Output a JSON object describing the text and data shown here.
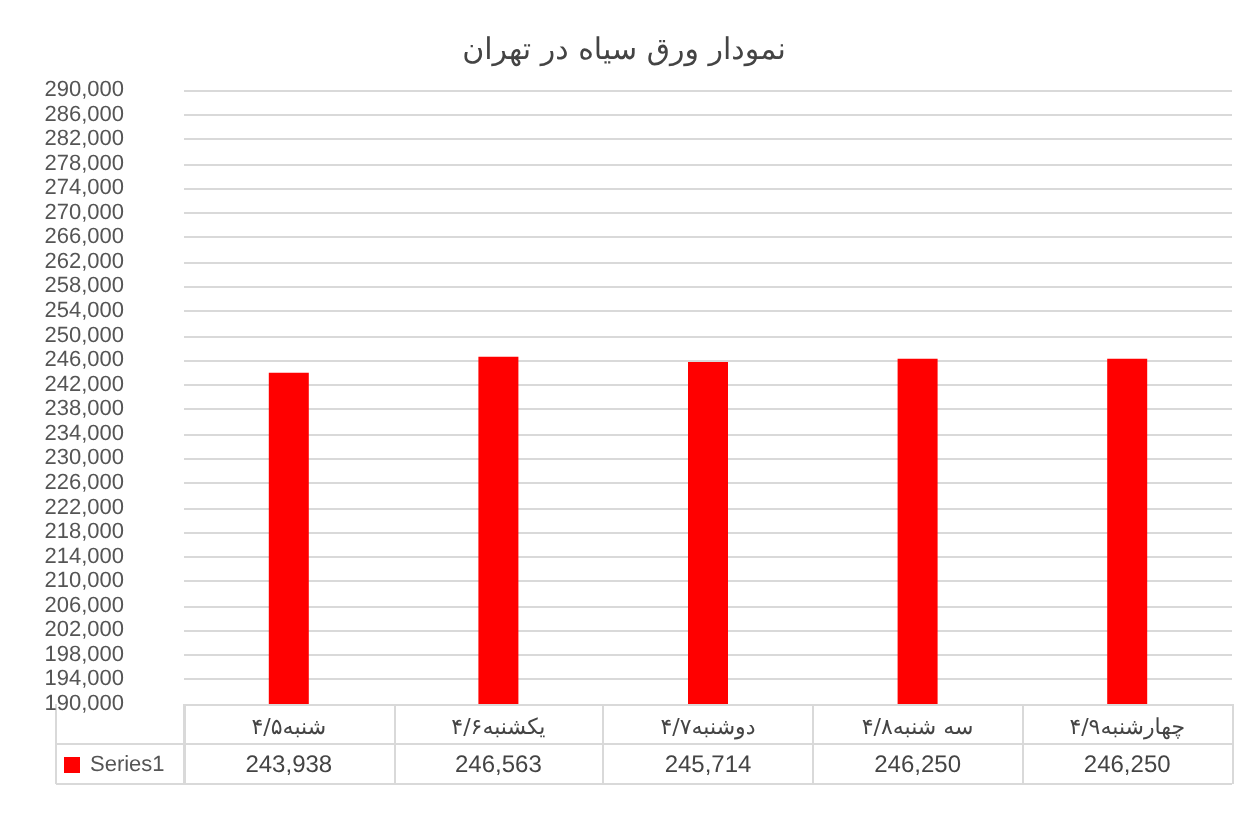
{
  "chart_data": {
    "type": "bar",
    "title": "نمودار ورق سیاه در تهران",
    "categories": [
      "شنبه۴/۵",
      "یکشنبه۴/۶",
      "دوشنبه۴/۷",
      "سه شنبه۴/۸",
      "چهارشنبه۴/۹"
    ],
    "series": [
      {
        "name": "Series1",
        "color": "#ff0000",
        "values": [
          243938,
          246563,
          245714,
          246250,
          246250
        ],
        "value_labels": [
          "243,938",
          "246,563",
          "245,714",
          "246,250",
          "246,250"
        ]
      }
    ],
    "ylim": [
      190000,
      290000
    ],
    "yticks": [
      {
        "value": 190000,
        "label": "190,000"
      },
      {
        "value": 194000,
        "label": "194,000"
      },
      {
        "value": 198000,
        "label": "198,000"
      },
      {
        "value": 202000,
        "label": "202,000"
      },
      {
        "value": 206000,
        "label": "206,000"
      },
      {
        "value": 210000,
        "label": "210,000"
      },
      {
        "value": 214000,
        "label": "214,000"
      },
      {
        "value": 218000,
        "label": "218,000"
      },
      {
        "value": 222000,
        "label": "222,000"
      },
      {
        "value": 226000,
        "label": "226,000"
      },
      {
        "value": 230000,
        "label": "230,000"
      },
      {
        "value": 234000,
        "label": "234,000"
      },
      {
        "value": 238000,
        "label": "238,000"
      },
      {
        "value": 242000,
        "label": "242,000"
      },
      {
        "value": 246000,
        "label": "246,000"
      },
      {
        "value": 250000,
        "label": "250,000"
      },
      {
        "value": 254000,
        "label": "254,000"
      },
      {
        "value": 258000,
        "label": "258,000"
      },
      {
        "value": 262000,
        "label": "262,000"
      },
      {
        "value": 266000,
        "label": "266,000"
      },
      {
        "value": 270000,
        "label": "270,000"
      },
      {
        "value": 274000,
        "label": "274,000"
      },
      {
        "value": 278000,
        "label": "278,000"
      },
      {
        "value": 282000,
        "label": "282,000"
      },
      {
        "value": 286000,
        "label": "286,000"
      },
      {
        "value": 290000,
        "label": "290,000"
      }
    ],
    "grid": "y",
    "legend": "bottom"
  }
}
